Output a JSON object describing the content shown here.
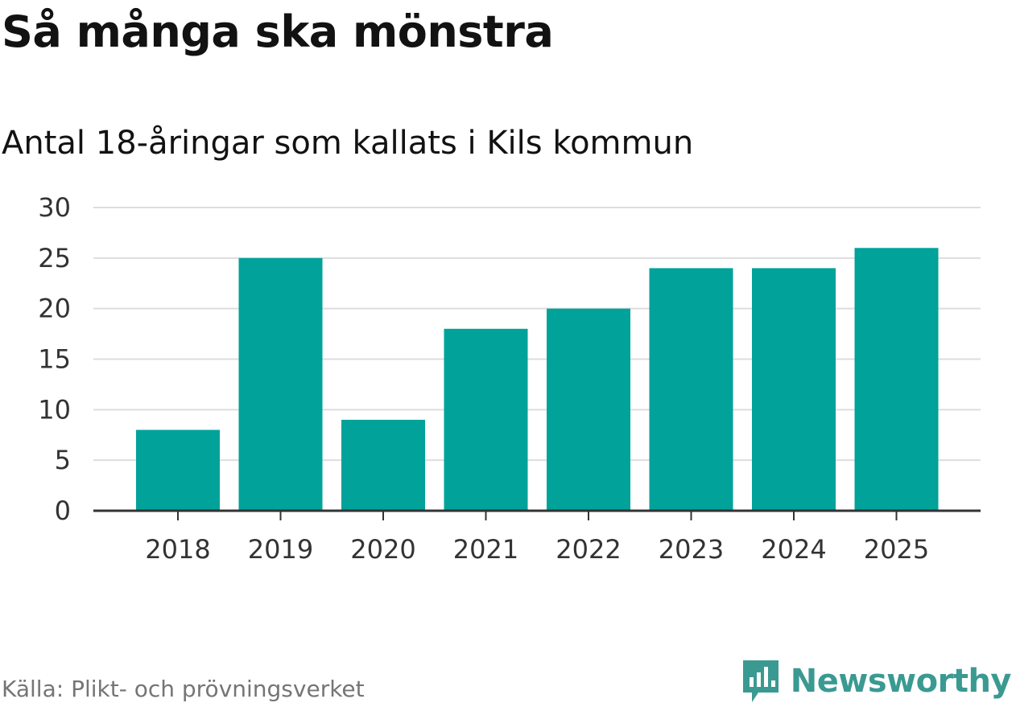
{
  "chart_data": {
    "type": "bar",
    "title": "Så många ska mönstra",
    "subtitle": "Antal 18-åringar som kallats i Kils kommun",
    "categories": [
      "2018",
      "2019",
      "2020",
      "2021",
      "2022",
      "2023",
      "2024",
      "2025"
    ],
    "values": [
      8,
      25,
      9,
      18,
      20,
      24,
      24,
      26
    ],
    "ylim": [
      0,
      30
    ],
    "yticks": [
      "0",
      "5",
      "10",
      "15",
      "20",
      "25",
      "30"
    ],
    "xlabel": "",
    "ylabel": "",
    "grid": true,
    "bar_color": "#00a29a"
  },
  "source": "Källa: Plikt- och prövningsverket",
  "brand": {
    "name": "Newsworthy",
    "icon": "newsworthy-logo-icon",
    "color": "#3a9a92"
  }
}
